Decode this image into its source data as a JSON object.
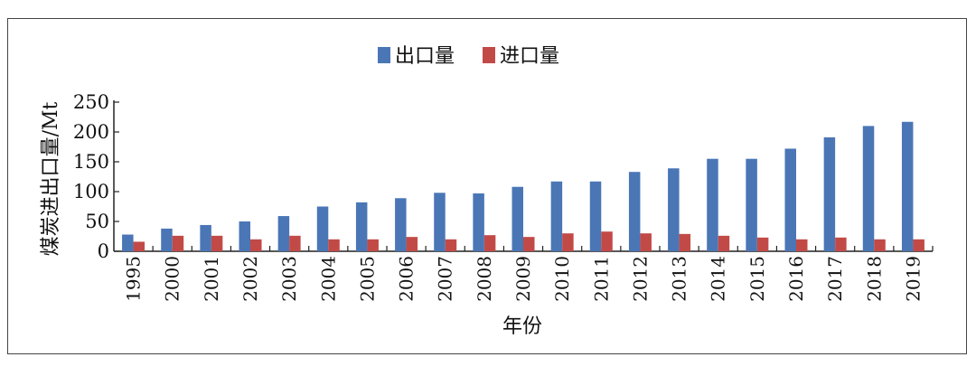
{
  "chart_data": {
    "type": "bar",
    "title": "",
    "xlabel": "年份",
    "ylabel": "煤炭进出口量/Mt",
    "ylim": [
      0,
      250
    ],
    "yticks": [
      0,
      50,
      100,
      150,
      200,
      250
    ],
    "legend_position": "top-center",
    "categories": [
      "1995",
      "2000",
      "2001",
      "2002",
      "2003",
      "2004",
      "2005",
      "2006",
      "2007",
      "2008",
      "2009",
      "2010",
      "2011",
      "2012",
      "2013",
      "2014",
      "2015",
      "2016",
      "2017",
      "2018",
      "2019"
    ],
    "series": [
      {
        "name": "出口量",
        "color": "#4a76b6",
        "values": [
          28,
          38,
          44,
          50,
          59,
          75,
          82,
          89,
          98,
          97,
          108,
          117,
          117,
          133,
          139,
          155,
          155,
          172,
          191,
          210,
          217
        ]
      },
      {
        "name": "进口量",
        "color": "#c24a46",
        "values": [
          16,
          26,
          26,
          20,
          26,
          20,
          20,
          24,
          20,
          27,
          24,
          30,
          33,
          30,
          29,
          26,
          23,
          20,
          23,
          20,
          20
        ]
      }
    ]
  }
}
